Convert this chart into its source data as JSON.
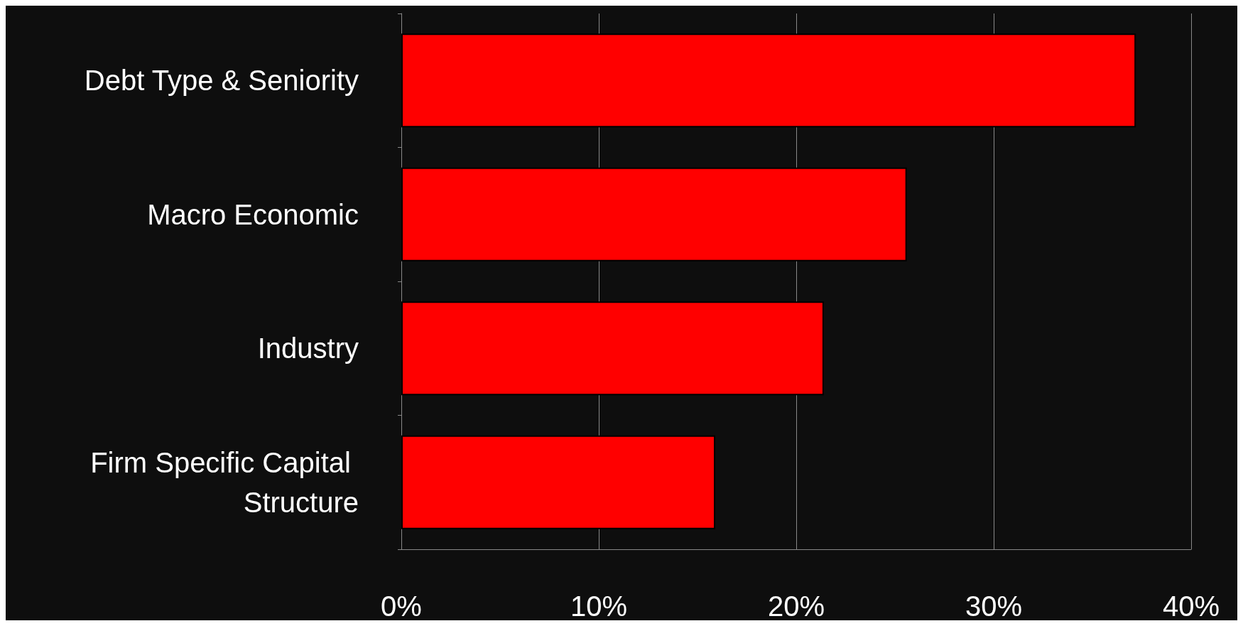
{
  "chart_data": {
    "type": "bar",
    "orientation": "horizontal",
    "categories": [
      "Debt Type & Seniority",
      "Macro Economic",
      "Industry",
      "Firm Specific Capital Structure"
    ],
    "values": [
      37.2,
      25.6,
      21.4,
      15.9
    ],
    "color": "#ff0000",
    "xlim": [
      0,
      40
    ],
    "xticks": [
      {
        "value": 0,
        "label": "0%"
      },
      {
        "value": 10,
        "label": "10%"
      },
      {
        "value": 20,
        "label": "20%"
      },
      {
        "value": 30,
        "label": "30%"
      },
      {
        "value": 40,
        "label": "40%"
      }
    ],
    "grid": "x"
  }
}
